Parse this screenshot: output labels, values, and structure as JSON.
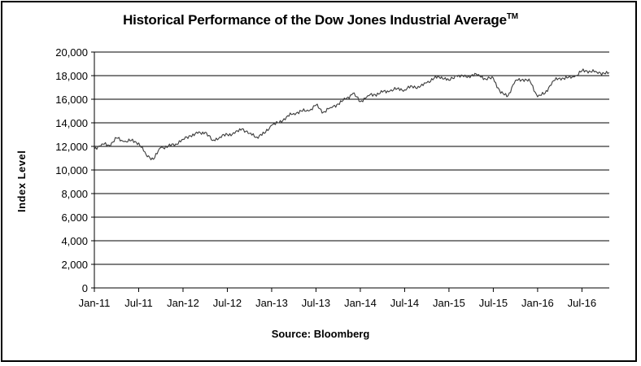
{
  "chart_data": {
    "type": "line",
    "title": "Historical Performance of the Dow Jones Industrial Average",
    "title_mark": "TM",
    "xlabel": "",
    "ylabel": "Index Level",
    "source": "Source:  Bloomberg",
    "ylim": [
      0,
      20000
    ],
    "yticks": [
      "0",
      "2,000",
      "4,000",
      "6,000",
      "8,000",
      "10,000",
      "12,000",
      "14,000",
      "16,000",
      "18,000",
      "20,000"
    ],
    "xticks": [
      "Jan-11",
      "Jul-11",
      "Jan-12",
      "Jul-12",
      "Jan-13",
      "Jul-13",
      "Jan-14",
      "Jul-14",
      "Jan-15",
      "Jul-15",
      "Jan-16",
      "Jul-16"
    ],
    "grid": "horizontal",
    "legend": "none",
    "line_color": "#3a3a3a",
    "series": [
      {
        "x": [
          "2011-01",
          "2011-02",
          "2011-03",
          "2011-04",
          "2011-05",
          "2011-06",
          "2011-07",
          "2011-08",
          "2011-09",
          "2011-10",
          "2011-11",
          "2011-12",
          "2012-01",
          "2012-02",
          "2012-03",
          "2012-04",
          "2012-05",
          "2012-06",
          "2012-07",
          "2012-08",
          "2012-09",
          "2012-10",
          "2012-11",
          "2012-12",
          "2013-01",
          "2013-02",
          "2013-03",
          "2013-04",
          "2013-05",
          "2013-06",
          "2013-07",
          "2013-08",
          "2013-09",
          "2013-10",
          "2013-11",
          "2013-12",
          "2014-01",
          "2014-02",
          "2014-03",
          "2014-04",
          "2014-05",
          "2014-06",
          "2014-07",
          "2014-08",
          "2014-09",
          "2014-10",
          "2014-11",
          "2014-12",
          "2015-01",
          "2015-02",
          "2015-03",
          "2015-04",
          "2015-05",
          "2015-06",
          "2015-07",
          "2015-08",
          "2015-09",
          "2015-10",
          "2015-11",
          "2015-12",
          "2016-01",
          "2016-02",
          "2016-03",
          "2016-04",
          "2016-05",
          "2016-06",
          "2016-07",
          "2016-08",
          "2016-09",
          "2016-10"
        ],
        "values": [
          11800,
          12200,
          12100,
          12700,
          12400,
          12500,
          12300,
          11300,
          10900,
          11900,
          12000,
          12200,
          12600,
          12900,
          13100,
          13200,
          12500,
          12800,
          13000,
          13100,
          13500,
          13100,
          12800,
          13100,
          13800,
          14000,
          14500,
          14800,
          15000,
          15000,
          15500,
          14900,
          15300,
          15600,
          16000,
          16500,
          15800,
          16300,
          16400,
          16600,
          16700,
          16900,
          16800,
          17100,
          17000,
          17400,
          17800,
          17900,
          17600,
          18000,
          17900,
          18000,
          18100,
          17700,
          17800,
          16500,
          16300,
          17600,
          17700,
          17500,
          16200,
          16500,
          17500,
          17800,
          17800,
          17900,
          18400,
          18400,
          18300,
          18200
        ]
      }
    ]
  }
}
